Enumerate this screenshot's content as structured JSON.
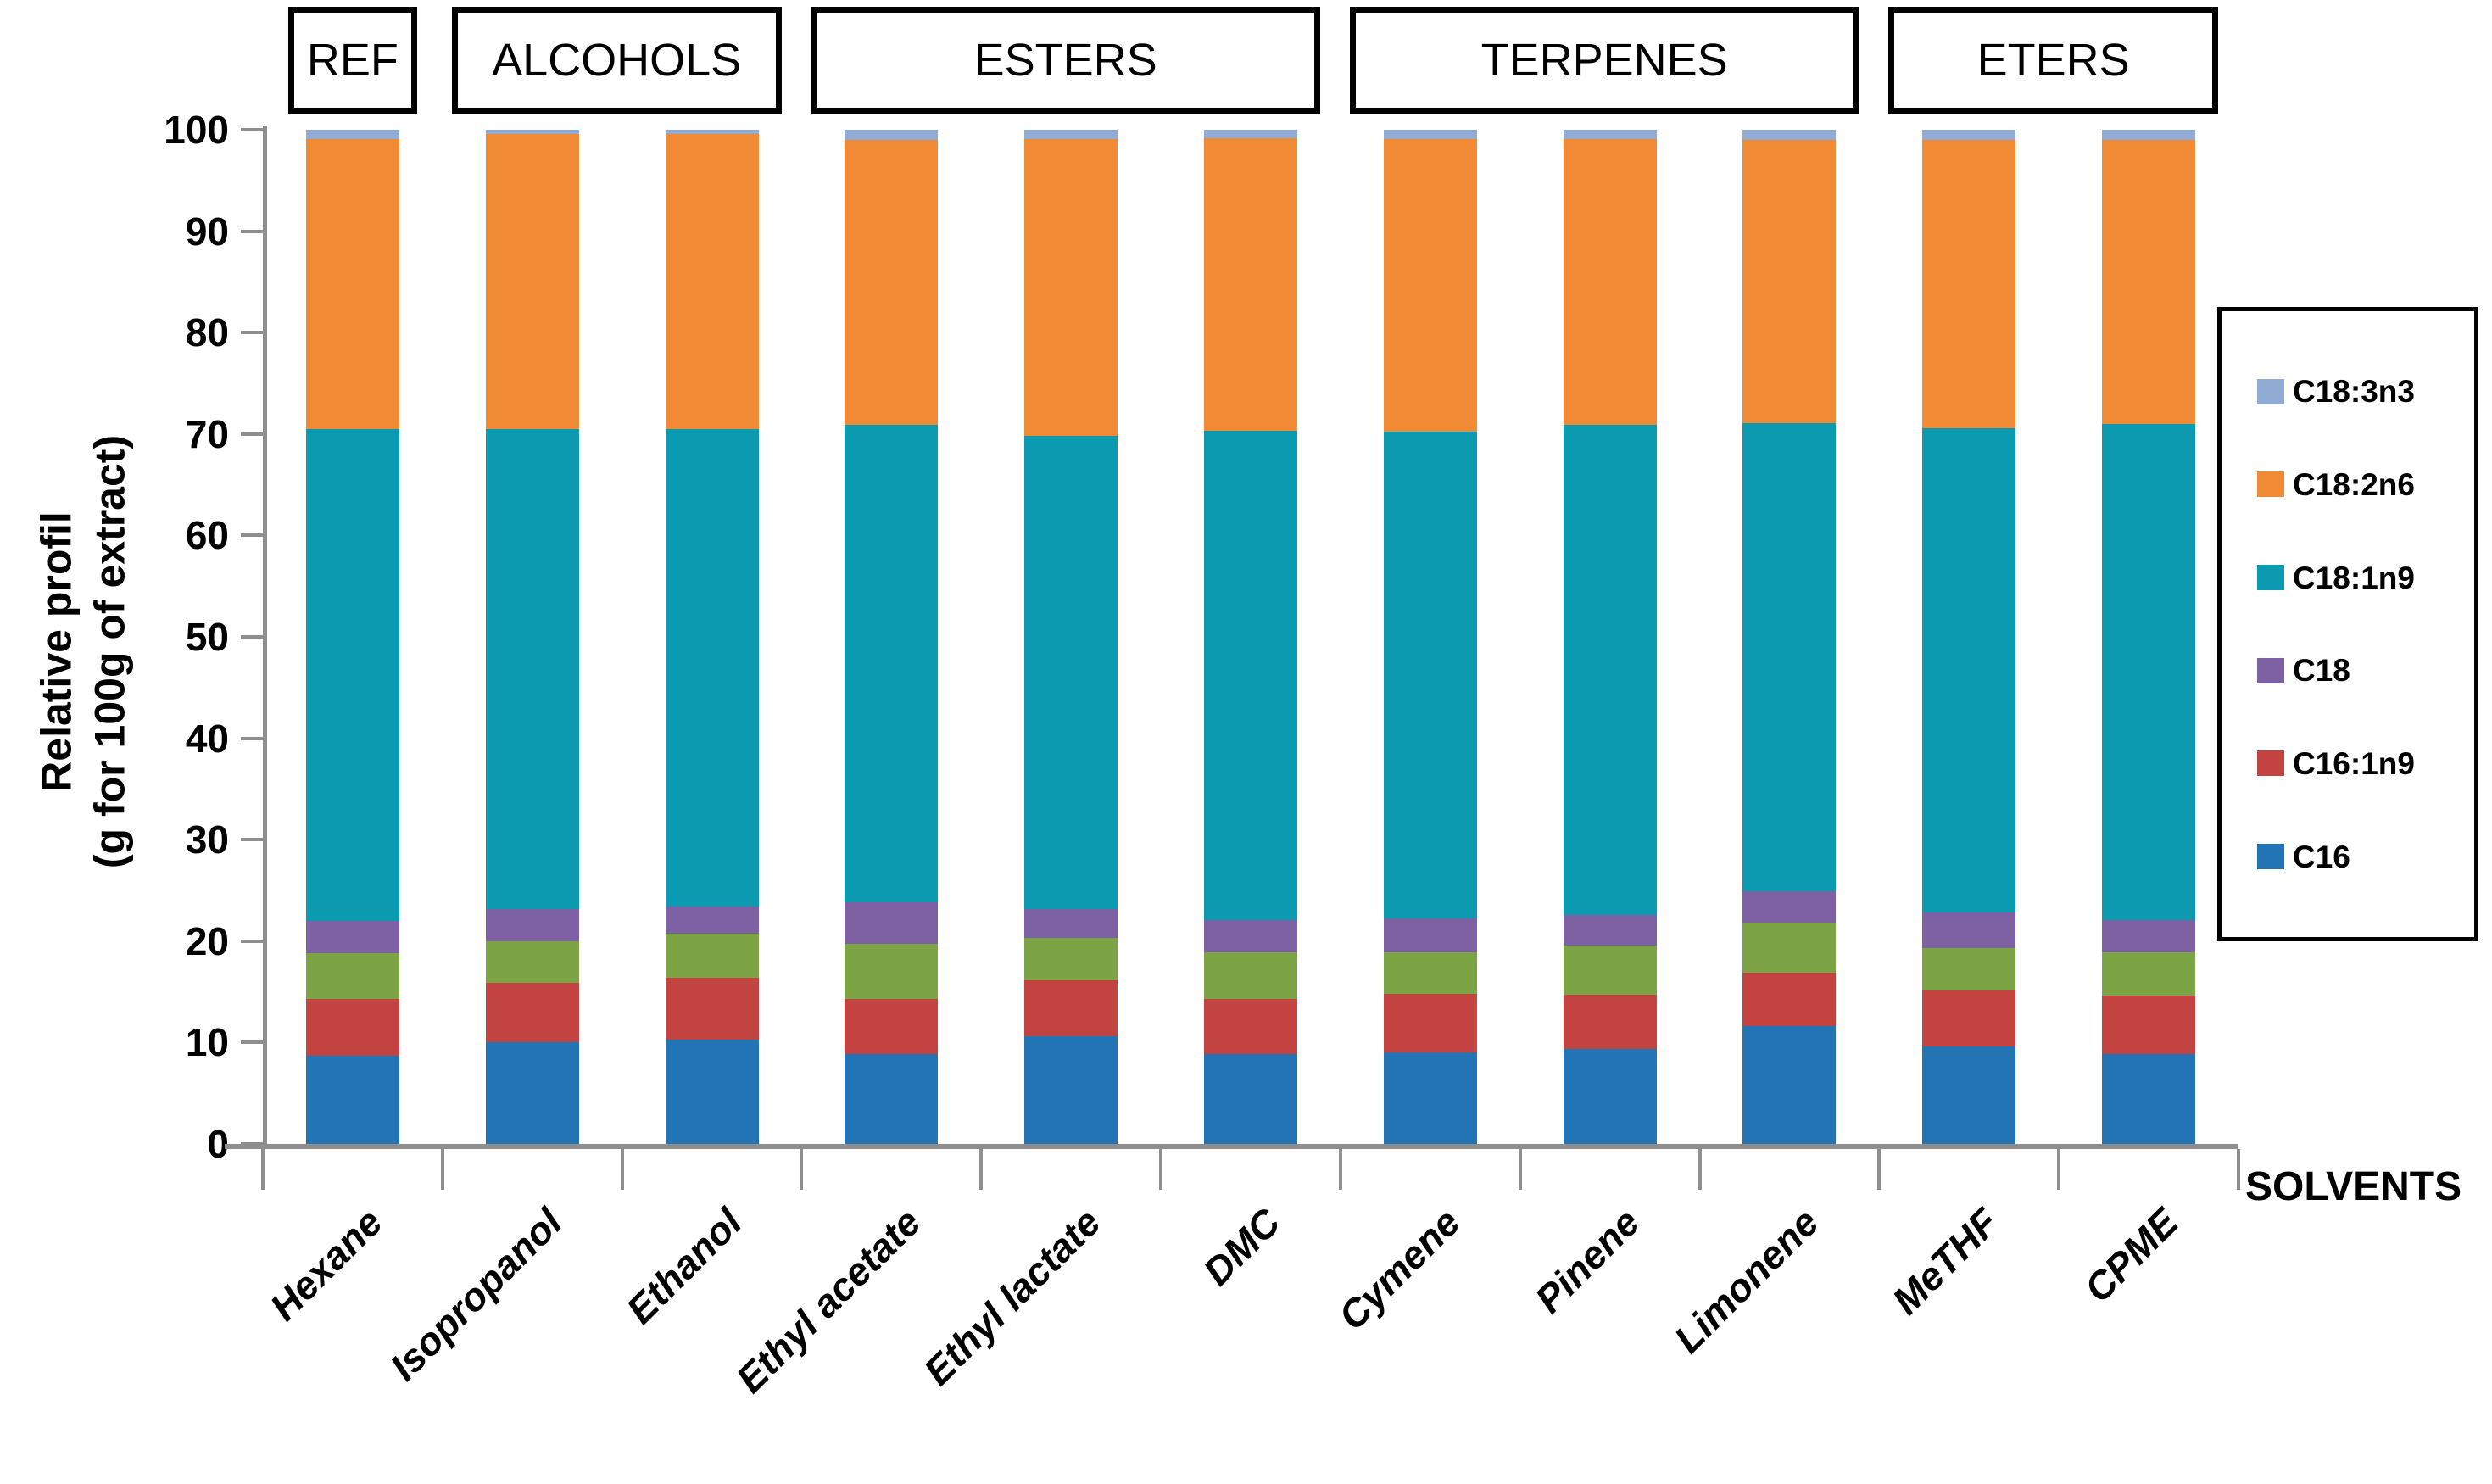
{
  "chart_data": {
    "type": "bar",
    "stacked": true,
    "xlabel": "SOLVENTS",
    "ylabel_line1": "Relative profil",
    "ylabel_line2": "(g for 100g of extract)",
    "ylim": [
      0,
      100
    ],
    "yticks": [
      0,
      10,
      20,
      30,
      40,
      50,
      60,
      70,
      80,
      90,
      100
    ],
    "grid": false,
    "axis_color": "#8e8e8e",
    "categories": [
      "Hexane",
      "Isopropanol",
      "Ethanol",
      "Ethyl acetate",
      "Ethyl lactate",
      "DMC",
      "Cymene",
      "Pinene",
      "Limonene",
      "MeTHF",
      "CPME"
    ],
    "groups": [
      {
        "label": "REF",
        "from": 0,
        "to": 0
      },
      {
        "label": "ALCOHOLS",
        "from": 1,
        "to": 2
      },
      {
        "label": "ESTERS",
        "from": 3,
        "to": 5
      },
      {
        "label": "TERPENES",
        "from": 6,
        "to": 8
      },
      {
        "label": "ETERS",
        "from": 9,
        "to": 10
      }
    ],
    "series": [
      {
        "name": "C16",
        "color": "#2374b5",
        "values": [
          8.7,
          10.0,
          10.3,
          8.9,
          10.6,
          8.9,
          9.0,
          9.4,
          11.6,
          9.6,
          8.9
        ]
      },
      {
        "name": "C16:1n9",
        "color": "#c2433f",
        "values": [
          5.6,
          5.9,
          6.1,
          5.4,
          5.5,
          5.4,
          5.8,
          5.3,
          5.3,
          5.5,
          5.7
        ]
      },
      {
        "name": "unlabeled (green)",
        "color": "#7ca444",
        "values": [
          4.5,
          4.1,
          4.3,
          5.4,
          4.2,
          4.6,
          4.1,
          4.9,
          4.9,
          4.2,
          4.3
        ]
      },
      {
        "name": "C18",
        "color": "#7d61a3",
        "values": [
          3.2,
          3.2,
          2.7,
          4.1,
          2.9,
          3.2,
          3.3,
          3.0,
          3.1,
          3.5,
          3.2
        ]
      },
      {
        "name": "C18:1n9",
        "color": "#0b9aaf",
        "values": [
          48.5,
          47.3,
          47.1,
          47.1,
          46.6,
          48.2,
          48.0,
          48.3,
          46.2,
          47.8,
          48.9
        ]
      },
      {
        "name": "C18:2n6",
        "color": "#f18a34",
        "values": [
          28.6,
          29.1,
          29.1,
          28.1,
          29.3,
          28.9,
          28.9,
          28.2,
          27.9,
          28.4,
          28.0
        ]
      },
      {
        "name": "C18:3n3",
        "color": "#90acd5",
        "values": [
          0.9,
          0.4,
          0.4,
          1.0,
          0.9,
          0.8,
          0.9,
          0.9,
          1.0,
          1.0,
          1.0
        ]
      }
    ],
    "legend": {
      "position": "right",
      "entries": [
        {
          "label": "C18:3n3",
          "color": "#90acd5"
        },
        {
          "label": "C18:2n6",
          "color": "#f18a34"
        },
        {
          "label": "C18:1n9",
          "color": "#0b9aaf"
        },
        {
          "label": "C18",
          "color": "#7d61a3"
        },
        {
          "label": "C16:1n9",
          "color": "#c2433f"
        },
        {
          "label": "C16",
          "color": "#2374b5"
        }
      ]
    }
  }
}
